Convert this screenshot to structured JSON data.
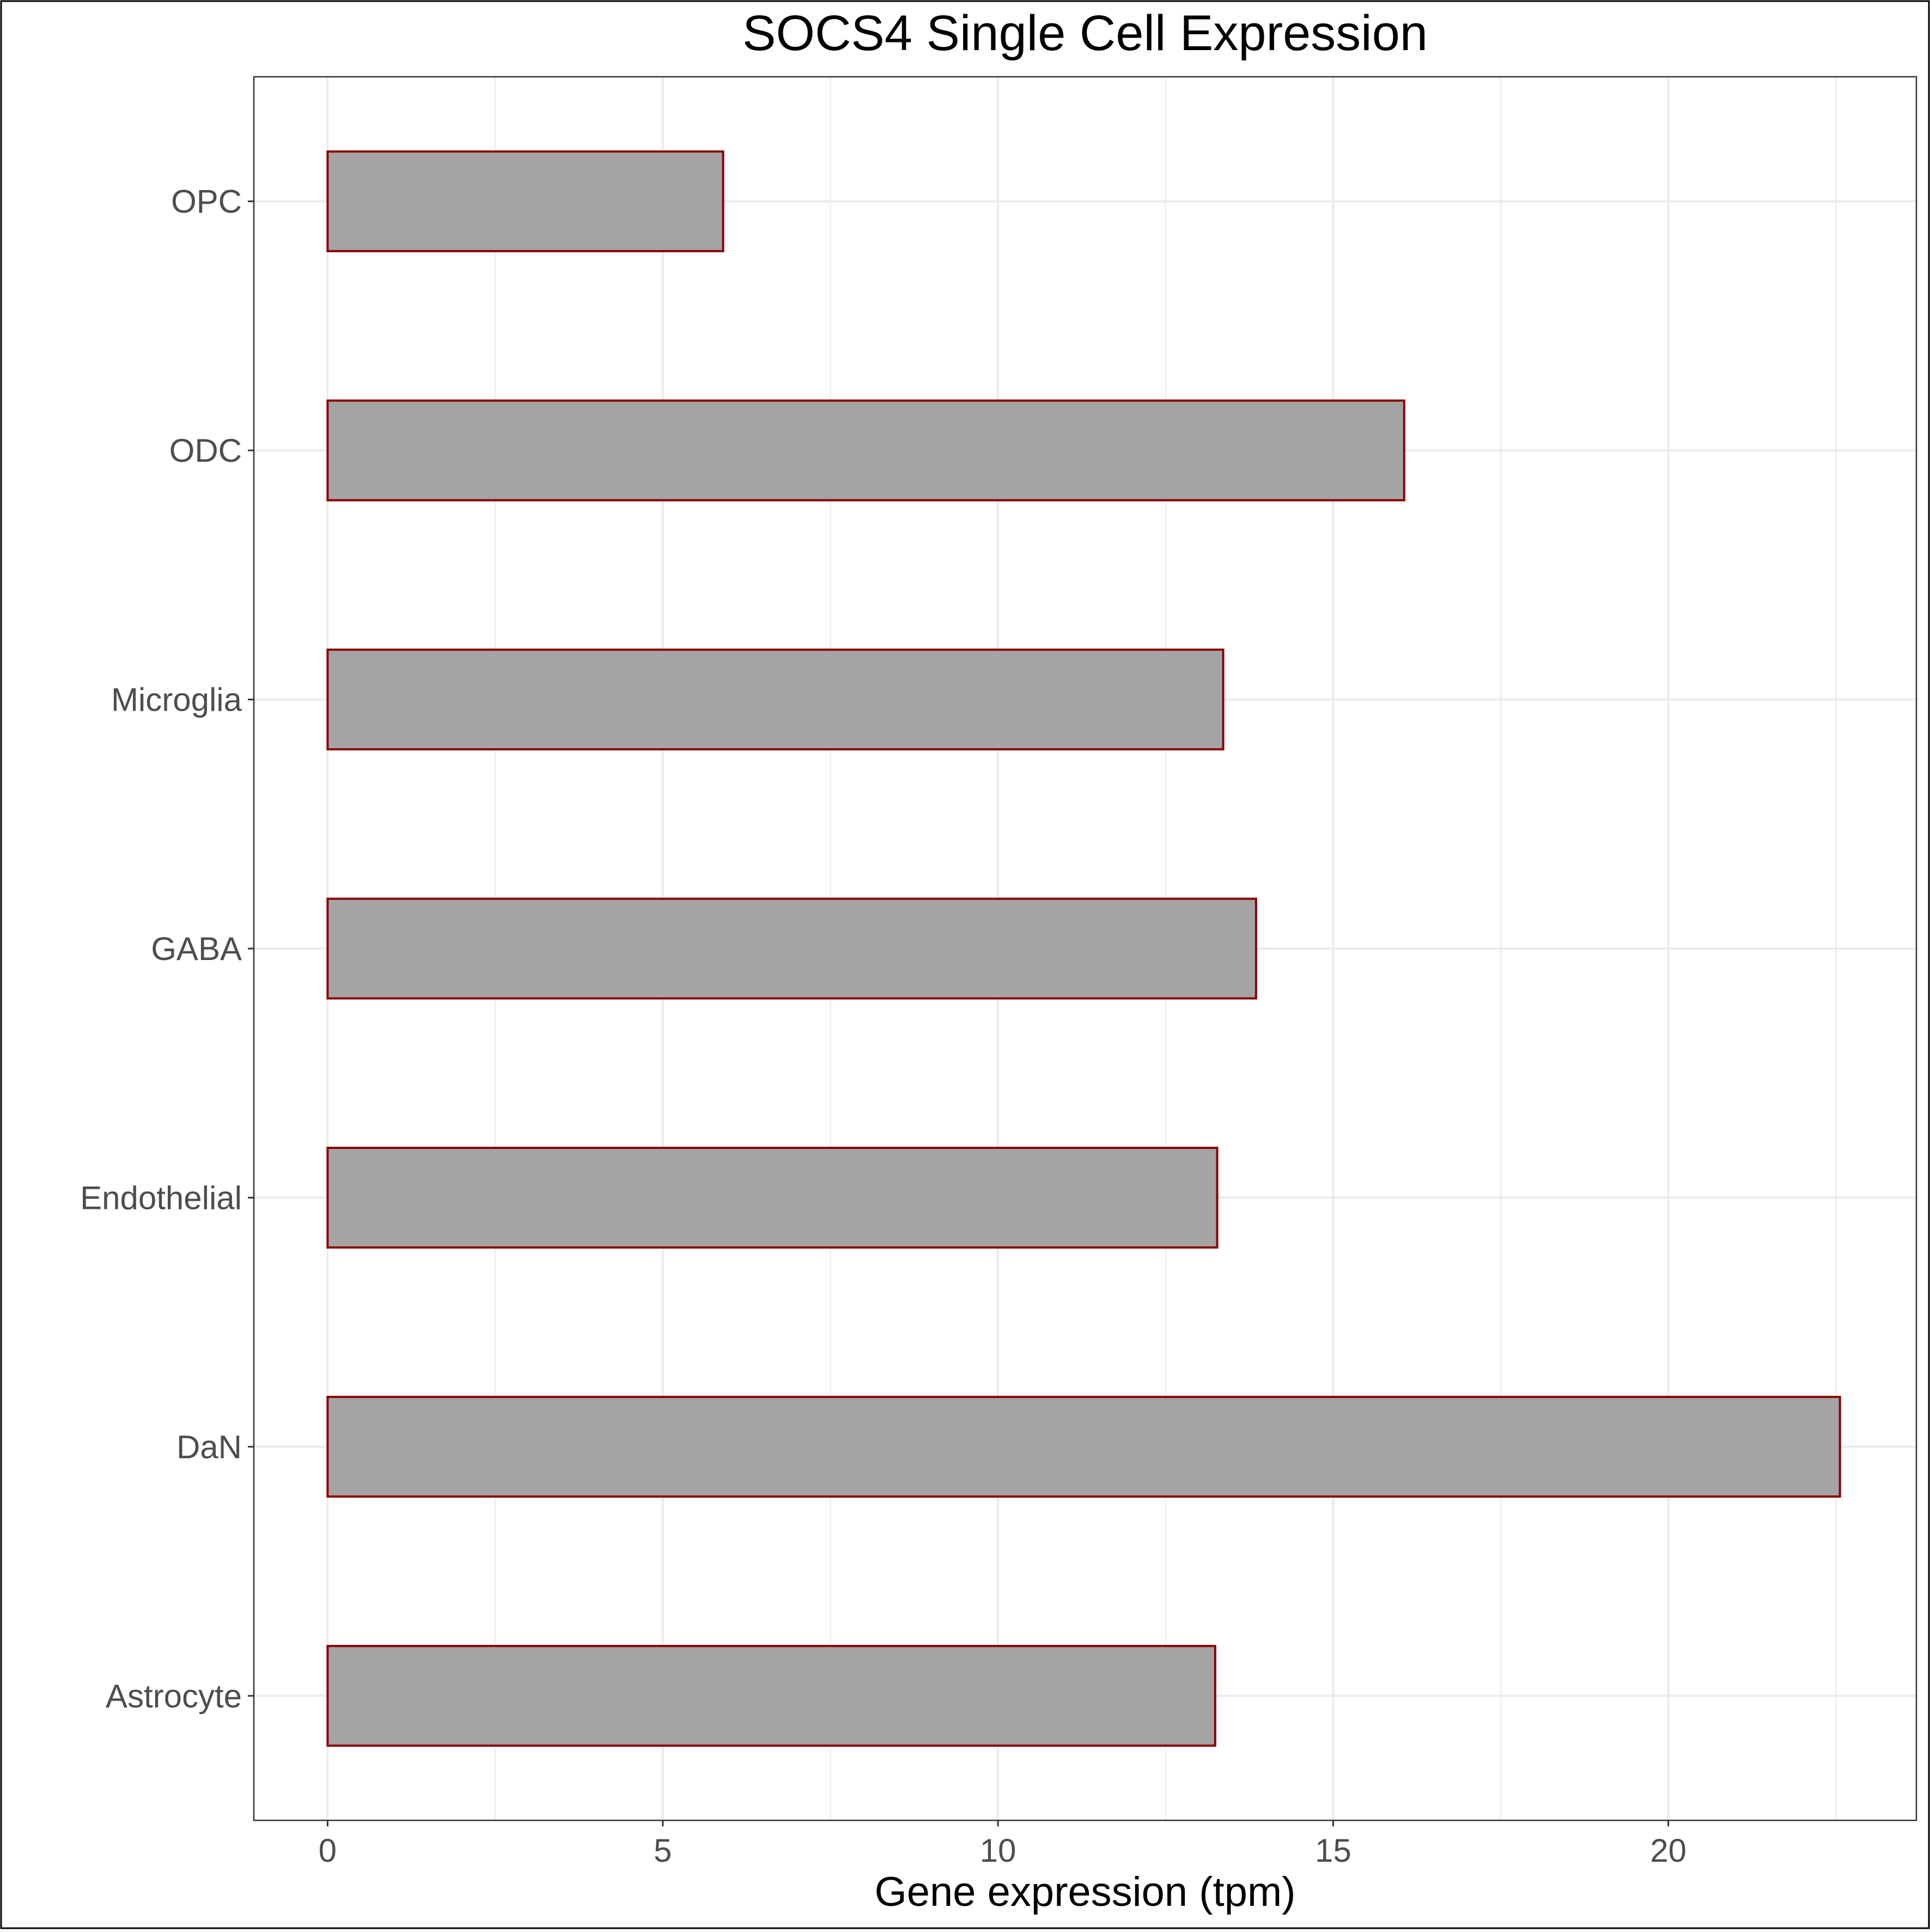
{
  "chart_data": {
    "type": "bar",
    "orientation": "horizontal",
    "title": "SOCS4 Single Cell Expression",
    "xlabel": "Gene expression (tpm)",
    "ylabel": "",
    "categories": [
      "Astrocyte",
      "DaN",
      "Endothelial",
      "GABA",
      "Microglia",
      "ODC",
      "OPC"
    ],
    "values": [
      13.24,
      22.56,
      13.27,
      13.85,
      13.36,
      16.06,
      5.9
    ],
    "xlim": [
      -1.1,
      23.7
    ],
    "xticks": [
      0,
      5,
      10,
      15,
      20
    ],
    "xtick_labels": [
      "0",
      "5",
      "10",
      "15",
      "20"
    ],
    "grid": true,
    "legend": "none",
    "colors": {
      "bar_fill": "#a4a4a4",
      "bar_stroke": "#8b0000",
      "grid": "#ebebeb",
      "panel_border": "#333333",
      "tick_label": "#4d4d4d",
      "title": "#000000"
    }
  }
}
